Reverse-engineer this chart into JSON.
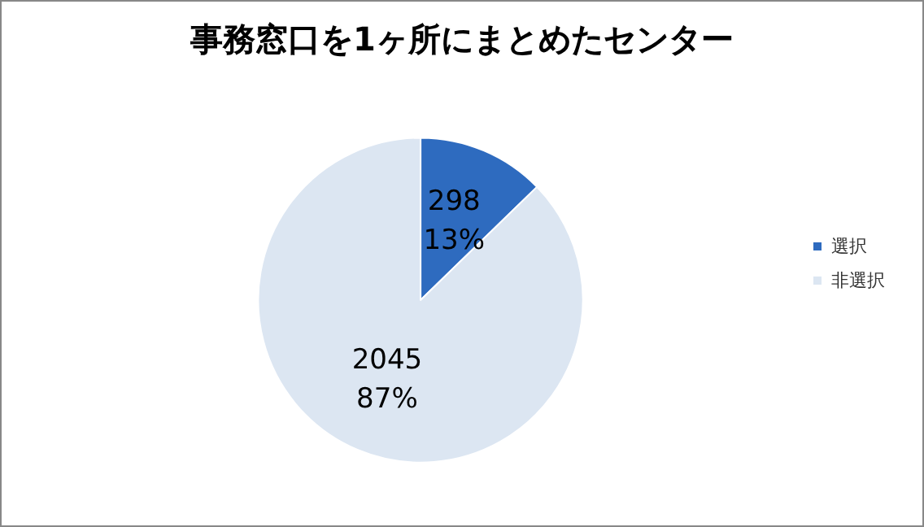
{
  "chart_data": {
    "type": "pie",
    "title": "事務窓口を1ヶ所にまとめたセンター",
    "categories": [
      "選択",
      "非選択"
    ],
    "values": [
      298,
      2045
    ],
    "colors": [
      "#2e6bbf",
      "#dce6f2"
    ],
    "value_labels": [
      "298\n13%",
      "2045\n87%"
    ],
    "legend": "right"
  }
}
